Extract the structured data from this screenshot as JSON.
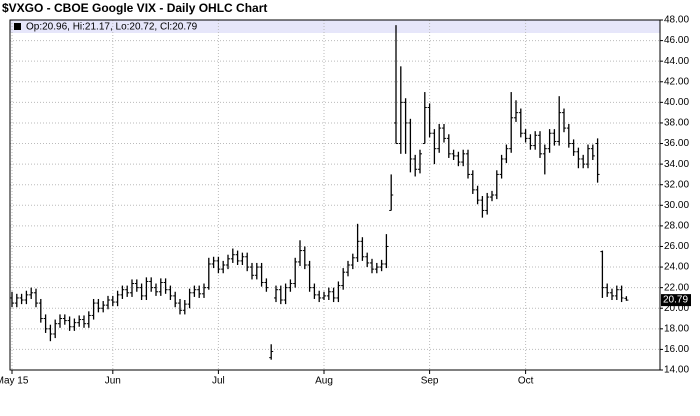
{
  "chart_data": {
    "type": "ohlc",
    "title": "$VXGO - CBOE Google VIX - Daily OHLC Chart",
    "legend_text": "Op:20.96, Hi:21.17, Lo:20.72, Cl:20.79",
    "color": "#000000",
    "grid": true,
    "ylim": [
      14,
      48
    ],
    "yticks": [
      {
        "value": 14,
        "label": "14.00"
      },
      {
        "value": 16,
        "label": "16.00"
      },
      {
        "value": 18,
        "label": "18.00"
      },
      {
        "value": 20,
        "label": "20.00"
      },
      {
        "value": 22,
        "label": "22.00"
      },
      {
        "value": 24,
        "label": "24.00"
      },
      {
        "value": 26,
        "label": "26.00"
      },
      {
        "value": 28,
        "label": "28.00"
      },
      {
        "value": 30,
        "label": "30.00"
      },
      {
        "value": 32,
        "label": "32.00"
      },
      {
        "value": 34,
        "label": "34.00"
      },
      {
        "value": 36,
        "label": "36.00"
      },
      {
        "value": 38,
        "label": "38.00"
      },
      {
        "value": 40,
        "label": "40.00"
      },
      {
        "value": 42,
        "label": "42.00"
      },
      {
        "value": 44,
        "label": "44.00"
      },
      {
        "value": 46,
        "label": "46.00"
      },
      {
        "value": 48,
        "label": "48.00"
      }
    ],
    "categories": [
      "May 15",
      null,
      null,
      null,
      null,
      null,
      null,
      null,
      null,
      null,
      null,
      null,
      null,
      null,
      null,
      null,
      null,
      null,
      null,
      null,
      null,
      "Jun",
      null,
      null,
      null,
      null,
      null,
      null,
      null,
      null,
      null,
      null,
      null,
      null,
      null,
      null,
      null,
      null,
      null,
      null,
      null,
      null,
      null,
      "Jul",
      null,
      null,
      null,
      null,
      null,
      null,
      null,
      null,
      null,
      null,
      null,
      null,
      null,
      null,
      null,
      null,
      null,
      null,
      null,
      null,
      null,
      "Aug",
      null,
      null,
      null,
      null,
      null,
      null,
      null,
      null,
      null,
      null,
      null,
      null,
      null,
      null,
      null,
      null,
      null,
      null,
      null,
      null,
      null,
      "Sep",
      null,
      null,
      null,
      null,
      null,
      null,
      null,
      null,
      null,
      null,
      null,
      null,
      null,
      null,
      null,
      null,
      null,
      null,
      null,
      "Oct",
      null,
      null,
      null,
      null,
      null,
      null,
      null,
      null,
      null,
      null,
      null,
      null,
      null,
      null,
      null,
      null,
      null,
      null,
      null,
      null,
      null
    ],
    "values": [
      [
        21.0,
        21.6,
        20.1,
        20.5
      ],
      [
        20.5,
        21.4,
        20.1,
        21.0
      ],
      [
        21.0,
        21.4,
        20.4,
        20.8
      ],
      [
        20.8,
        21.7,
        20.4,
        21.3
      ],
      [
        21.3,
        22.0,
        20.9,
        21.5
      ],
      [
        21.5,
        21.9,
        20.1,
        20.5
      ],
      [
        20.5,
        20.9,
        18.6,
        19.0
      ],
      [
        19.0,
        19.4,
        17.6,
        18.0
      ],
      [
        18.0,
        18.4,
        16.8,
        17.5
      ],
      [
        17.5,
        18.9,
        17.1,
        18.5
      ],
      [
        18.5,
        19.4,
        18.1,
        19.0
      ],
      [
        19.0,
        19.4,
        18.4,
        18.8
      ],
      [
        18.8,
        19.2,
        17.8,
        18.2
      ],
      [
        18.2,
        19.0,
        17.8,
        18.6
      ],
      [
        18.6,
        19.3,
        18.2,
        18.9
      ],
      [
        18.9,
        19.3,
        18.1,
        18.5
      ],
      [
        18.5,
        19.7,
        18.1,
        19.3
      ],
      [
        19.3,
        20.9,
        18.9,
        20.5
      ],
      [
        20.5,
        20.9,
        19.6,
        20.0
      ],
      [
        20.0,
        20.7,
        19.6,
        20.3
      ],
      [
        20.3,
        21.2,
        19.9,
        20.8
      ],
      [
        20.8,
        21.2,
        20.2,
        20.6
      ],
      [
        20.6,
        21.7,
        20.2,
        21.3
      ],
      [
        21.3,
        22.2,
        20.9,
        21.8
      ],
      [
        21.8,
        22.2,
        21.1,
        21.5
      ],
      [
        21.5,
        22.8,
        21.1,
        22.4
      ],
      [
        22.4,
        22.8,
        21.6,
        22.0
      ],
      [
        22.0,
        22.4,
        20.8,
        21.2
      ],
      [
        21.2,
        23.0,
        20.8,
        22.6
      ],
      [
        22.6,
        23.0,
        21.6,
        22.0
      ],
      [
        22.0,
        22.4,
        21.2,
        21.6
      ],
      [
        21.6,
        22.9,
        21.2,
        22.5
      ],
      [
        22.5,
        22.9,
        21.4,
        21.8
      ],
      [
        21.8,
        22.2,
        20.8,
        21.2
      ],
      [
        21.2,
        21.6,
        20.1,
        20.5
      ],
      [
        20.5,
        20.9,
        19.4,
        19.8
      ],
      [
        19.8,
        20.8,
        19.4,
        20.4
      ],
      [
        20.4,
        21.9,
        20.0,
        21.5
      ],
      [
        21.5,
        22.2,
        21.1,
        21.8
      ],
      [
        21.8,
        22.2,
        21.0,
        21.4
      ],
      [
        21.4,
        22.4,
        21.0,
        22.0
      ],
      [
        22.0,
        24.9,
        21.8,
        24.3
      ],
      [
        24.3,
        25.0,
        23.9,
        24.6
      ],
      [
        24.6,
        25.0,
        23.4,
        23.8
      ],
      [
        23.8,
        24.6,
        23.4,
        24.2
      ],
      [
        24.2,
        25.2,
        23.8,
        24.8
      ],
      [
        24.8,
        25.8,
        24.4,
        25.2
      ],
      [
        25.2,
        25.6,
        24.2,
        24.6
      ],
      [
        24.6,
        25.4,
        24.2,
        25.0
      ],
      [
        25.0,
        25.4,
        23.6,
        24.0
      ],
      [
        24.0,
        24.4,
        22.8,
        23.2
      ],
      [
        23.2,
        24.4,
        22.8,
        24.0
      ],
      [
        24.0,
        24.4,
        22.1,
        22.5
      ],
      [
        22.5,
        22.9,
        21.6,
        22.0
      ],
      [
        15.2,
        16.5,
        15.0,
        15.8
      ],
      [
        21.0,
        22.2,
        20.6,
        21.8
      ],
      [
        21.8,
        22.2,
        20.4,
        20.8
      ],
      [
        20.8,
        22.4,
        20.4,
        22.0
      ],
      [
        22.0,
        22.8,
        21.6,
        22.4
      ],
      [
        22.4,
        24.9,
        22.0,
        24.5
      ],
      [
        24.5,
        26.6,
        24.1,
        25.6
      ],
      [
        25.6,
        26.0,
        23.8,
        24.2
      ],
      [
        24.2,
        24.6,
        21.6,
        22.0
      ],
      [
        22.0,
        22.4,
        20.9,
        21.3
      ],
      [
        21.3,
        21.7,
        20.6,
        21.0
      ],
      [
        21.0,
        21.6,
        20.8,
        21.2
      ],
      [
        21.2,
        22.0,
        20.8,
        21.6
      ],
      [
        21.6,
        22.0,
        20.6,
        21.0
      ],
      [
        21.0,
        22.6,
        20.6,
        22.2
      ],
      [
        22.2,
        23.9,
        21.8,
        23.5
      ],
      [
        23.5,
        24.6,
        23.1,
        24.2
      ],
      [
        24.2,
        25.3,
        23.8,
        24.9
      ],
      [
        24.9,
        28.2,
        24.5,
        26.5
      ],
      [
        26.5,
        26.9,
        24.6,
        25.0
      ],
      [
        25.0,
        25.4,
        24.0,
        24.4
      ],
      [
        24.4,
        24.8,
        23.4,
        23.8
      ],
      [
        23.8,
        24.4,
        23.4,
        24.0
      ],
      [
        24.0,
        24.7,
        23.6,
        24.3
      ],
      [
        24.3,
        27.2,
        23.9,
        26.0
      ],
      [
        29.5,
        33.0,
        29.5,
        31.0
      ],
      [
        38.0,
        47.5,
        36.0,
        36.0
      ],
      [
        36.0,
        43.5,
        35.0,
        40.0
      ],
      [
        40.0,
        40.4,
        35.0,
        38.0
      ],
      [
        38.0,
        38.4,
        33.2,
        34.5
      ],
      [
        34.5,
        34.9,
        32.8,
        33.5
      ],
      [
        33.5,
        35.4,
        33.1,
        35.0
      ],
      [
        36.0,
        41.0,
        36.0,
        39.5
      ],
      [
        39.5,
        39.9,
        36.6,
        37.0
      ],
      [
        37.0,
        37.4,
        34.0,
        35.5
      ],
      [
        35.5,
        37.9,
        35.1,
        37.5
      ],
      [
        37.5,
        37.9,
        36.1,
        36.5
      ],
      [
        36.5,
        36.9,
        34.6,
        35.0
      ],
      [
        35.0,
        35.4,
        34.4,
        34.8
      ],
      [
        34.8,
        35.2,
        33.8,
        34.2
      ],
      [
        34.2,
        35.4,
        33.8,
        35.0
      ],
      [
        35.0,
        35.4,
        32.6,
        33.0
      ],
      [
        33.0,
        33.4,
        31.1,
        31.5
      ],
      [
        31.5,
        31.9,
        30.1,
        30.5
      ],
      [
        30.5,
        30.9,
        28.8,
        29.5
      ],
      [
        29.5,
        31.2,
        29.1,
        30.8
      ],
      [
        30.8,
        31.4,
        30.4,
        31.0
      ],
      [
        31.0,
        33.4,
        30.6,
        33.0
      ],
      [
        33.0,
        34.9,
        32.6,
        34.5
      ],
      [
        34.5,
        35.9,
        34.1,
        35.5
      ],
      [
        35.5,
        41.0,
        35.1,
        38.5
      ],
      [
        38.5,
        40.2,
        38.1,
        39.0
      ],
      [
        39.0,
        39.4,
        36.6,
        37.0
      ],
      [
        37.0,
        37.4,
        36.1,
        36.5
      ],
      [
        36.5,
        36.9,
        35.4,
        35.8
      ],
      [
        35.8,
        37.2,
        35.4,
        36.8
      ],
      [
        36.8,
        37.2,
        34.6,
        35.0
      ],
      [
        35.0,
        35.9,
        33.0,
        35.5
      ],
      [
        35.5,
        37.4,
        35.1,
        37.0
      ],
      [
        37.0,
        37.4,
        35.8,
        36.2
      ],
      [
        36.2,
        40.6,
        35.8,
        39.0
      ],
      [
        39.0,
        39.4,
        37.1,
        37.5
      ],
      [
        37.5,
        37.9,
        35.6,
        36.0
      ],
      [
        36.0,
        36.4,
        34.8,
        35.2
      ],
      [
        35.2,
        35.6,
        33.6,
        34.5
      ],
      [
        34.5,
        34.9,
        33.6,
        34.0
      ],
      [
        34.0,
        35.9,
        33.6,
        35.5
      ],
      [
        35.5,
        35.9,
        34.4,
        34.8
      ],
      [
        36.0,
        36.5,
        32.2,
        33.0
      ],
      [
        25.5,
        25.6,
        21.0,
        22.0
      ],
      [
        22.0,
        22.4,
        21.1,
        21.5
      ],
      [
        21.5,
        21.9,
        20.8,
        21.2
      ],
      [
        21.2,
        22.2,
        20.8,
        21.8
      ],
      [
        21.8,
        22.2,
        20.6,
        21.0
      ],
      [
        20.96,
        21.17,
        20.72,
        20.79
      ]
    ]
  }
}
